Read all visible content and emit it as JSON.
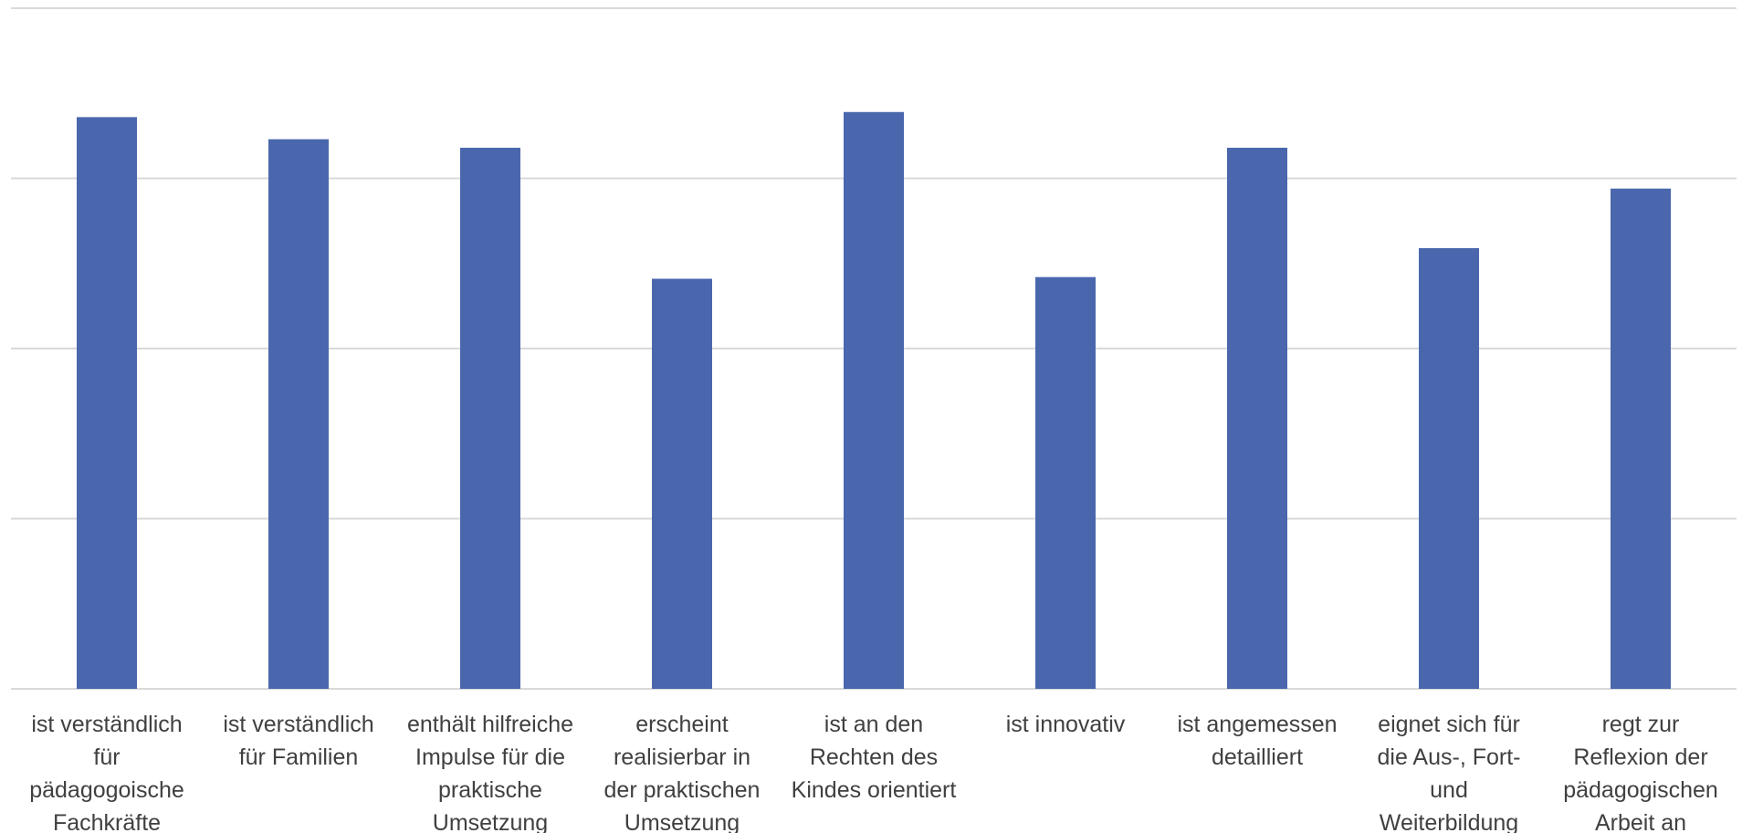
{
  "chart_data": {
    "type": "bar",
    "title": "",
    "xlabel": "",
    "ylabel": "",
    "ylim": [
      0,
      4
    ],
    "grid": true,
    "categories": [
      [
        "ist verständlich",
        "für",
        "pädagogoische",
        "Fachkräfte"
      ],
      [
        "ist verständlich",
        "für Familien"
      ],
      [
        "enthält hilfreiche",
        "Impulse für die",
        "praktische",
        "Umsetzung"
      ],
      [
        "erscheint",
        "realisierbar in",
        "der praktischen",
        "Umsetzung"
      ],
      [
        "ist an den",
        "Rechten des",
        "Kindes orientiert"
      ],
      [
        "ist innovativ"
      ],
      [
        "ist angemessen",
        "detailliert"
      ],
      [
        "eignet sich für",
        "die Aus-, Fort-",
        "und",
        "Weiterbildung"
      ],
      [
        "regt zur",
        "Reflexion der",
        "pädagogischen",
        "Arbeit an"
      ]
    ],
    "values": [
      3.36,
      3.23,
      3.18,
      2.41,
      3.39,
      2.42,
      3.18,
      2.59,
      2.94
    ],
    "colors": {
      "bar": "#4a67ad",
      "grid": "#d9d9d9",
      "label": "#404040"
    }
  }
}
